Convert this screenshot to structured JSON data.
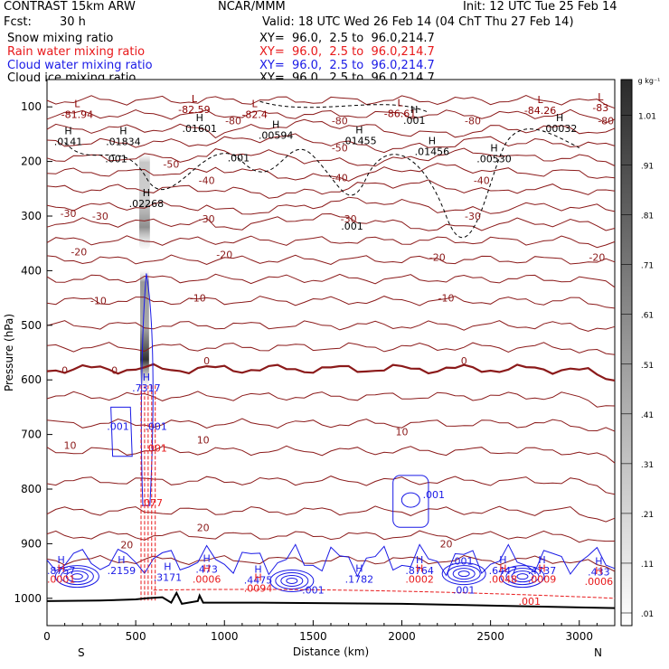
{
  "header": {
    "model": "CONTRAST 15km ARW",
    "org": "NCAR/MMM",
    "init": "Init: 12 UTC Tue 25 Feb 14",
    "fcst_label": "Fcst:",
    "fcst_value": "30 h",
    "valid": "Valid: 18 UTC Wed 26 Feb 14 (04 ChT Thu 27 Feb 14)"
  },
  "fields": [
    {
      "name": "Snow mixing ratio",
      "xy": "XY=  96.0,  2.5 to  96.0,214.7",
      "color": "#000000"
    },
    {
      "name": "Rain water mixing ratio",
      "xy": "XY=  96.0,  2.5 to  96.0,214.7",
      "color": "#e8191b"
    },
    {
      "name": "Cloud water mixing ratio",
      "xy": "XY=  96.0,  2.5 to  96.0,214.7",
      "color": "#1a1ae6"
    },
    {
      "name": "Cloud ice mixing ratio",
      "xy": "XY=  96.0,  2.5 to  96.0,214.7",
      "color": "#000000"
    }
  ],
  "chart_data": {
    "type": "cross-section contour",
    "xlabel": "Distance (km)",
    "ylabel": "Pressure (hPa)",
    "xlim": [
      0,
      3200
    ],
    "ylim": [
      1050,
      50
    ],
    "x_ticks": [
      0,
      500,
      1000,
      1500,
      2000,
      2500,
      3000
    ],
    "y_ticks": [
      100,
      200,
      300,
      400,
      500,
      600,
      700,
      800,
      900,
      1000
    ],
    "x_ends": {
      "left": "S",
      "right": "N"
    },
    "colorbar": {
      "unit": "g kg⁻¹",
      "levels": [
        "1.01",
        ".91",
        ".81",
        ".71",
        ".61",
        ".51",
        ".41",
        ".31",
        ".21",
        ".11",
        ".01"
      ],
      "min": 0.01,
      "max": 1.06
    },
    "temperature_contours_c": [
      -80,
      -70,
      -60,
      -50,
      -40,
      -30,
      -20,
      -10,
      0,
      10,
      20
    ],
    "temperature_labels": [
      {
        "text": "-80",
        "x": 1050,
        "p": 125
      },
      {
        "text": "-80",
        "x": 1650,
        "p": 125
      },
      {
        "text": "-80",
        "x": 2400,
        "p": 125
      },
      {
        "text": "-80",
        "x": 3150,
        "p": 125
      },
      {
        "text": "-50",
        "x": 1650,
        "p": 175
      },
      {
        "text": "-50",
        "x": 700,
        "p": 205
      },
      {
        "text": "-40",
        "x": 900,
        "p": 235
      },
      {
        "text": "-40",
        "x": 1650,
        "p": 230
      },
      {
        "text": "-40",
        "x": 2450,
        "p": 235
      },
      {
        "text": "-30",
        "x": 120,
        "p": 295
      },
      {
        "text": "-30",
        "x": 300,
        "p": 300
      },
      {
        "text": "-30",
        "x": 900,
        "p": 305
      },
      {
        "text": "-30",
        "x": 1700,
        "p": 305
      },
      {
        "text": "-30",
        "x": 2400,
        "p": 300
      },
      {
        "text": "-20",
        "x": 180,
        "p": 365
      },
      {
        "text": "-20",
        "x": 1000,
        "p": 370
      },
      {
        "text": "-20",
        "x": 2200,
        "p": 375
      },
      {
        "text": "-20",
        "x": 3100,
        "p": 375
      },
      {
        "text": "-10",
        "x": 290,
        "p": 455
      },
      {
        "text": "-10",
        "x": 850,
        "p": 450
      },
      {
        "text": "-10",
        "x": 2250,
        "p": 450
      },
      {
        "text": "0",
        "x": 100,
        "p": 582
      },
      {
        "text": "0",
        "x": 380,
        "p": 582
      },
      {
        "text": "0",
        "x": 900,
        "p": 565
      },
      {
        "text": "0",
        "x": 2350,
        "p": 565
      },
      {
        "text": "10",
        "x": 130,
        "p": 720
      },
      {
        "text": "10",
        "x": 880,
        "p": 710
      },
      {
        "text": "10",
        "x": 2000,
        "p": 695
      },
      {
        "text": "20",
        "x": 450,
        "p": 902
      },
      {
        "text": "20",
        "x": 880,
        "p": 870
      },
      {
        "text": "20",
        "x": 2250,
        "p": 900
      }
    ],
    "extrema": [
      {
        "kind": "L",
        "label": "-81.94",
        "x": 170,
        "p": 117,
        "color": "#8b0000"
      },
      {
        "kind": "L",
        "label": "-82.59",
        "x": 830,
        "p": 108,
        "color": "#8b0000"
      },
      {
        "kind": "L",
        "label": "-82.4",
        "x": 1170,
        "p": 117,
        "color": "#8b0000"
      },
      {
        "kind": "L",
        "label": "-86.61",
        "x": 1990,
        "p": 115,
        "color": "#8b0000"
      },
      {
        "kind": "L",
        "label": "-84.26",
        "x": 2780,
        "p": 110,
        "color": "#8b0000"
      },
      {
        "kind": "L",
        "label": "-83",
        "x": 3120,
        "p": 105,
        "color": "#8b0000"
      },
      {
        "kind": "H",
        "label": ".01601",
        "x": 860,
        "p": 143,
        "color": "#000000"
      },
      {
        "kind": "H",
        "label": ".001",
        "x": 2070,
        "p": 128,
        "color": "#000000"
      },
      {
        "kind": "H",
        "label": ".00032",
        "x": 2890,
        "p": 143,
        "color": "#000000"
      },
      {
        "kind": "H",
        "label": ".0141",
        "x": 120,
        "p": 167,
        "color": "#000000"
      },
      {
        "kind": "H",
        "label": ".01834",
        "x": 430,
        "p": 167,
        "color": "#000000"
      },
      {
        "kind": "H",
        "label": ".00594",
        "x": 1290,
        "p": 155,
        "color": "#000000"
      },
      {
        "kind": "H",
        "label": ".01455",
        "x": 1760,
        "p": 165,
        "color": "#000000"
      },
      {
        "kind": "H",
        "label": ".01456",
        "x": 2170,
        "p": 185,
        "color": "#000000"
      },
      {
        "kind": "H",
        "label": ".00530",
        "x": 2520,
        "p": 198,
        "color": "#000000"
      },
      {
        "kind": "H",
        "label": ".02268",
        "x": 560,
        "p": 280,
        "color": "#000000"
      },
      {
        "kind": "H",
        "label": ".7317",
        "x": 560,
        "p": 618,
        "color": "#1a1ae6"
      },
      {
        "kind": "H",
        "label": ".8757",
        "x": 80,
        "p": 952,
        "color": "#1a1ae6"
      },
      {
        "kind": "H",
        "label": ".2159",
        "x": 420,
        "p": 952,
        "color": "#1a1ae6"
      },
      {
        "kind": "H",
        "label": ".3171",
        "x": 680,
        "p": 965,
        "color": "#1a1ae6"
      },
      {
        "kind": "H",
        "label": ".473",
        "x": 900,
        "p": 950,
        "color": "#1a1ae6"
      },
      {
        "kind": "H",
        "label": ".4475",
        "x": 1190,
        "p": 970,
        "color": "#1a1ae6"
      },
      {
        "kind": "H",
        "label": ".1782",
        "x": 1760,
        "p": 968,
        "color": "#1a1ae6"
      },
      {
        "kind": "H",
        "label": ".8764",
        "x": 2100,
        "p": 952,
        "color": "#1a1ae6"
      },
      {
        "kind": "H",
        "label": ".6447",
        "x": 2570,
        "p": 952,
        "color": "#1a1ae6"
      },
      {
        "kind": "H",
        "label": ".4737",
        "x": 2790,
        "p": 952,
        "color": "#1a1ae6"
      },
      {
        "kind": "H",
        "label": ".433",
        "x": 3110,
        "p": 955,
        "color": "#1a1ae6"
      },
      {
        "kind": "H",
        "label": ".0001",
        "x": 80,
        "p": 968,
        "color": "#e8191b"
      },
      {
        "kind": "H",
        "label": ".0006",
        "x": 900,
        "p": 968,
        "color": "#e8191b"
      },
      {
        "kind": "H",
        "label": ".0094",
        "x": 1190,
        "p": 985,
        "color": "#e8191b"
      },
      {
        "kind": "H",
        "label": ".0002",
        "x": 2100,
        "p": 968,
        "color": "#e8191b"
      },
      {
        "kind": "H",
        "label": ".0048",
        "x": 2570,
        "p": 968,
        "color": "#e8191b"
      },
      {
        "kind": "H",
        "label": ".0009",
        "x": 2790,
        "p": 968,
        "color": "#e8191b"
      },
      {
        "kind": "H",
        "label": ".0006",
        "x": 3110,
        "p": 972,
        "color": "#e8191b"
      }
    ],
    "contour_labels": [
      {
        "text": ".001",
        "x": 390,
        "p": 195,
        "color": "#000000"
      },
      {
        "text": ".001",
        "x": 1080,
        "p": 193,
        "color": "#000000"
      },
      {
        "text": ".001",
        "x": 1720,
        "p": 318,
        "color": "#000000"
      },
      {
        "text": ".001",
        "x": 400,
        "p": 685,
        "color": "#1a1ae6"
      },
      {
        "text": ".001",
        "x": 615,
        "p": 685,
        "color": "#1a1ae6"
      },
      {
        "text": ".001",
        "x": 615,
        "p": 725,
        "color": "#e8191b"
      },
      {
        "text": ".001",
        "x": 2180,
        "p": 810,
        "color": "#1a1ae6"
      },
      {
        "text": ".001",
        "x": 1500,
        "p": 985,
        "color": "#1a1ae6"
      },
      {
        "text": ".001",
        "x": 2350,
        "p": 985,
        "color": "#1a1ae6"
      },
      {
        "text": ".001",
        "x": 2340,
        "p": 932,
        "color": "#1a1ae6"
      },
      {
        "text": ".001",
        "x": 2720,
        "p": 1005,
        "color": "#e8191b"
      },
      {
        "text": ".077",
        "x": 590,
        "p": 825,
        "color": "#e8191b"
      }
    ]
  }
}
